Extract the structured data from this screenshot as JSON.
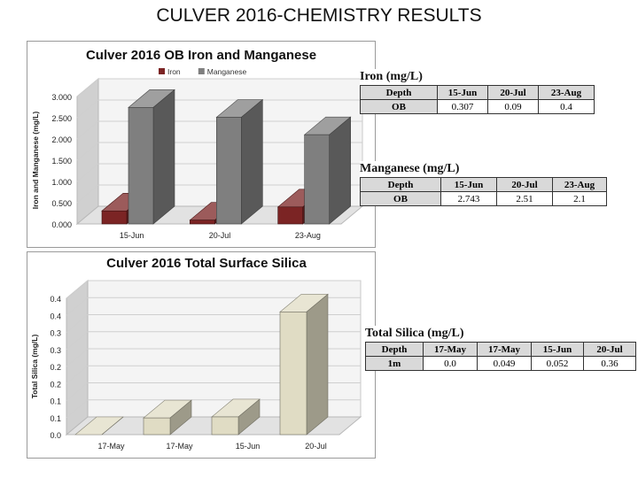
{
  "page": {
    "title": "CULVER 2016-CHEMISTRY RESULTS"
  },
  "chart_data": [
    {
      "type": "bar",
      "title": "Culver 2016 OB Iron and Manganese",
      "xlabel": "",
      "ylabel": "Iron and Manganese (mg/L)",
      "categories": [
        "15-Jun",
        "20-Jul",
        "23-Aug"
      ],
      "series": [
        {
          "name": "Iron",
          "values": [
            0.307,
            0.09,
            0.4
          ],
          "color": "#7b2424"
        },
        {
          "name": "Manganese",
          "values": [
            2.743,
            2.51,
            2.1
          ],
          "color": "#7f7f7f"
        }
      ],
      "yticks": [
        "0.000",
        "0.500",
        "1.000",
        "1.500",
        "2.000",
        "2.500",
        "3.000"
      ],
      "ylim": [
        0,
        3
      ],
      "legend": "top",
      "grid": true
    },
    {
      "type": "bar",
      "title": "Culver 2016 Total Surface Silica",
      "xlabel": "",
      "ylabel": "Total Silica (mg/L)",
      "categories": [
        "17-May",
        "17-May",
        "15-Jun",
        "20-Jul"
      ],
      "series": [
        {
          "values": [
            0.0,
            0.049,
            0.052,
            0.36
          ],
          "color": "#e0dcc4"
        }
      ],
      "yticks": [
        "0.0",
        "0.1",
        "0.1",
        "0.2",
        "0.2",
        "0.3",
        "0.3",
        "0.4",
        "0.4"
      ],
      "ylim": [
        0,
        0.4
      ],
      "grid": true
    }
  ],
  "tables": {
    "iron": {
      "title": "Iron (mg/L)",
      "header": [
        "Depth",
        "15-Jun",
        "20-Jul",
        "23-Aug"
      ],
      "row": [
        "OB",
        "0.307",
        "0.09",
        "0.4"
      ]
    },
    "manganese": {
      "title": "Manganese (mg/L)",
      "header": [
        "Depth",
        "15-Jun",
        "20-Jul",
        "23-Aug"
      ],
      "row": [
        "OB",
        "2.743",
        "2.51",
        "2.1"
      ]
    },
    "silica": {
      "title": "Total Silica (mg/L)",
      "header": [
        "Depth",
        "17-May",
        "17-May",
        "15-Jun",
        "20-Jul"
      ],
      "row": [
        "1m",
        "0.0",
        "0.049",
        "0.052",
        "0.36"
      ]
    }
  }
}
